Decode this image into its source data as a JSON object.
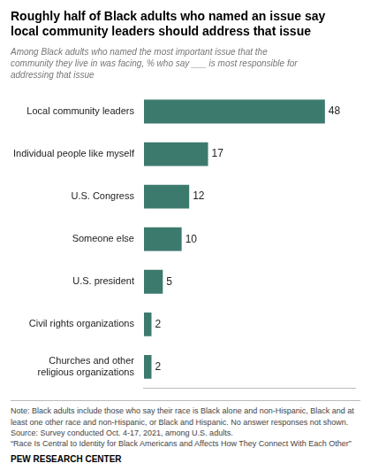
{
  "chart_data": {
    "type": "bar",
    "orientation": "horizontal",
    "title": "Roughly half of Black adults who named an issue say\nlocal community leaders should address that issue",
    "subtitle": "Among Black adults who named the most important issue that the\ncommunity they live in was facing, % who say ___ is most responsible for\naddressing that issue",
    "categories": [
      "Local community leaders",
      "Individual people like myself",
      "U.S. Congress",
      "Someone else",
      "U.S. president",
      "Civil rights organizations",
      "Churches and other\nreligious organizations"
    ],
    "values": [
      48,
      17,
      12,
      10,
      5,
      2,
      2
    ],
    "color": "#3d7a6e",
    "xlim": [
      0,
      56
    ],
    "grid": false,
    "data_labels": true,
    "tick_labels": "y",
    "note": "Note: Black adults include those who say their race is Black alone and non-Hispanic, Black and at least one other race and non-Hispanic, or Black and Hispanic. No answer responses not shown.\nSource: Survey conducted Oct. 4-17, 2021, among U.S. adults.\n“Race Is Central to Identity for Black Americans and Affects How They Connect With Each Other”",
    "footer": "PEW RESEARCH CENTER"
  }
}
